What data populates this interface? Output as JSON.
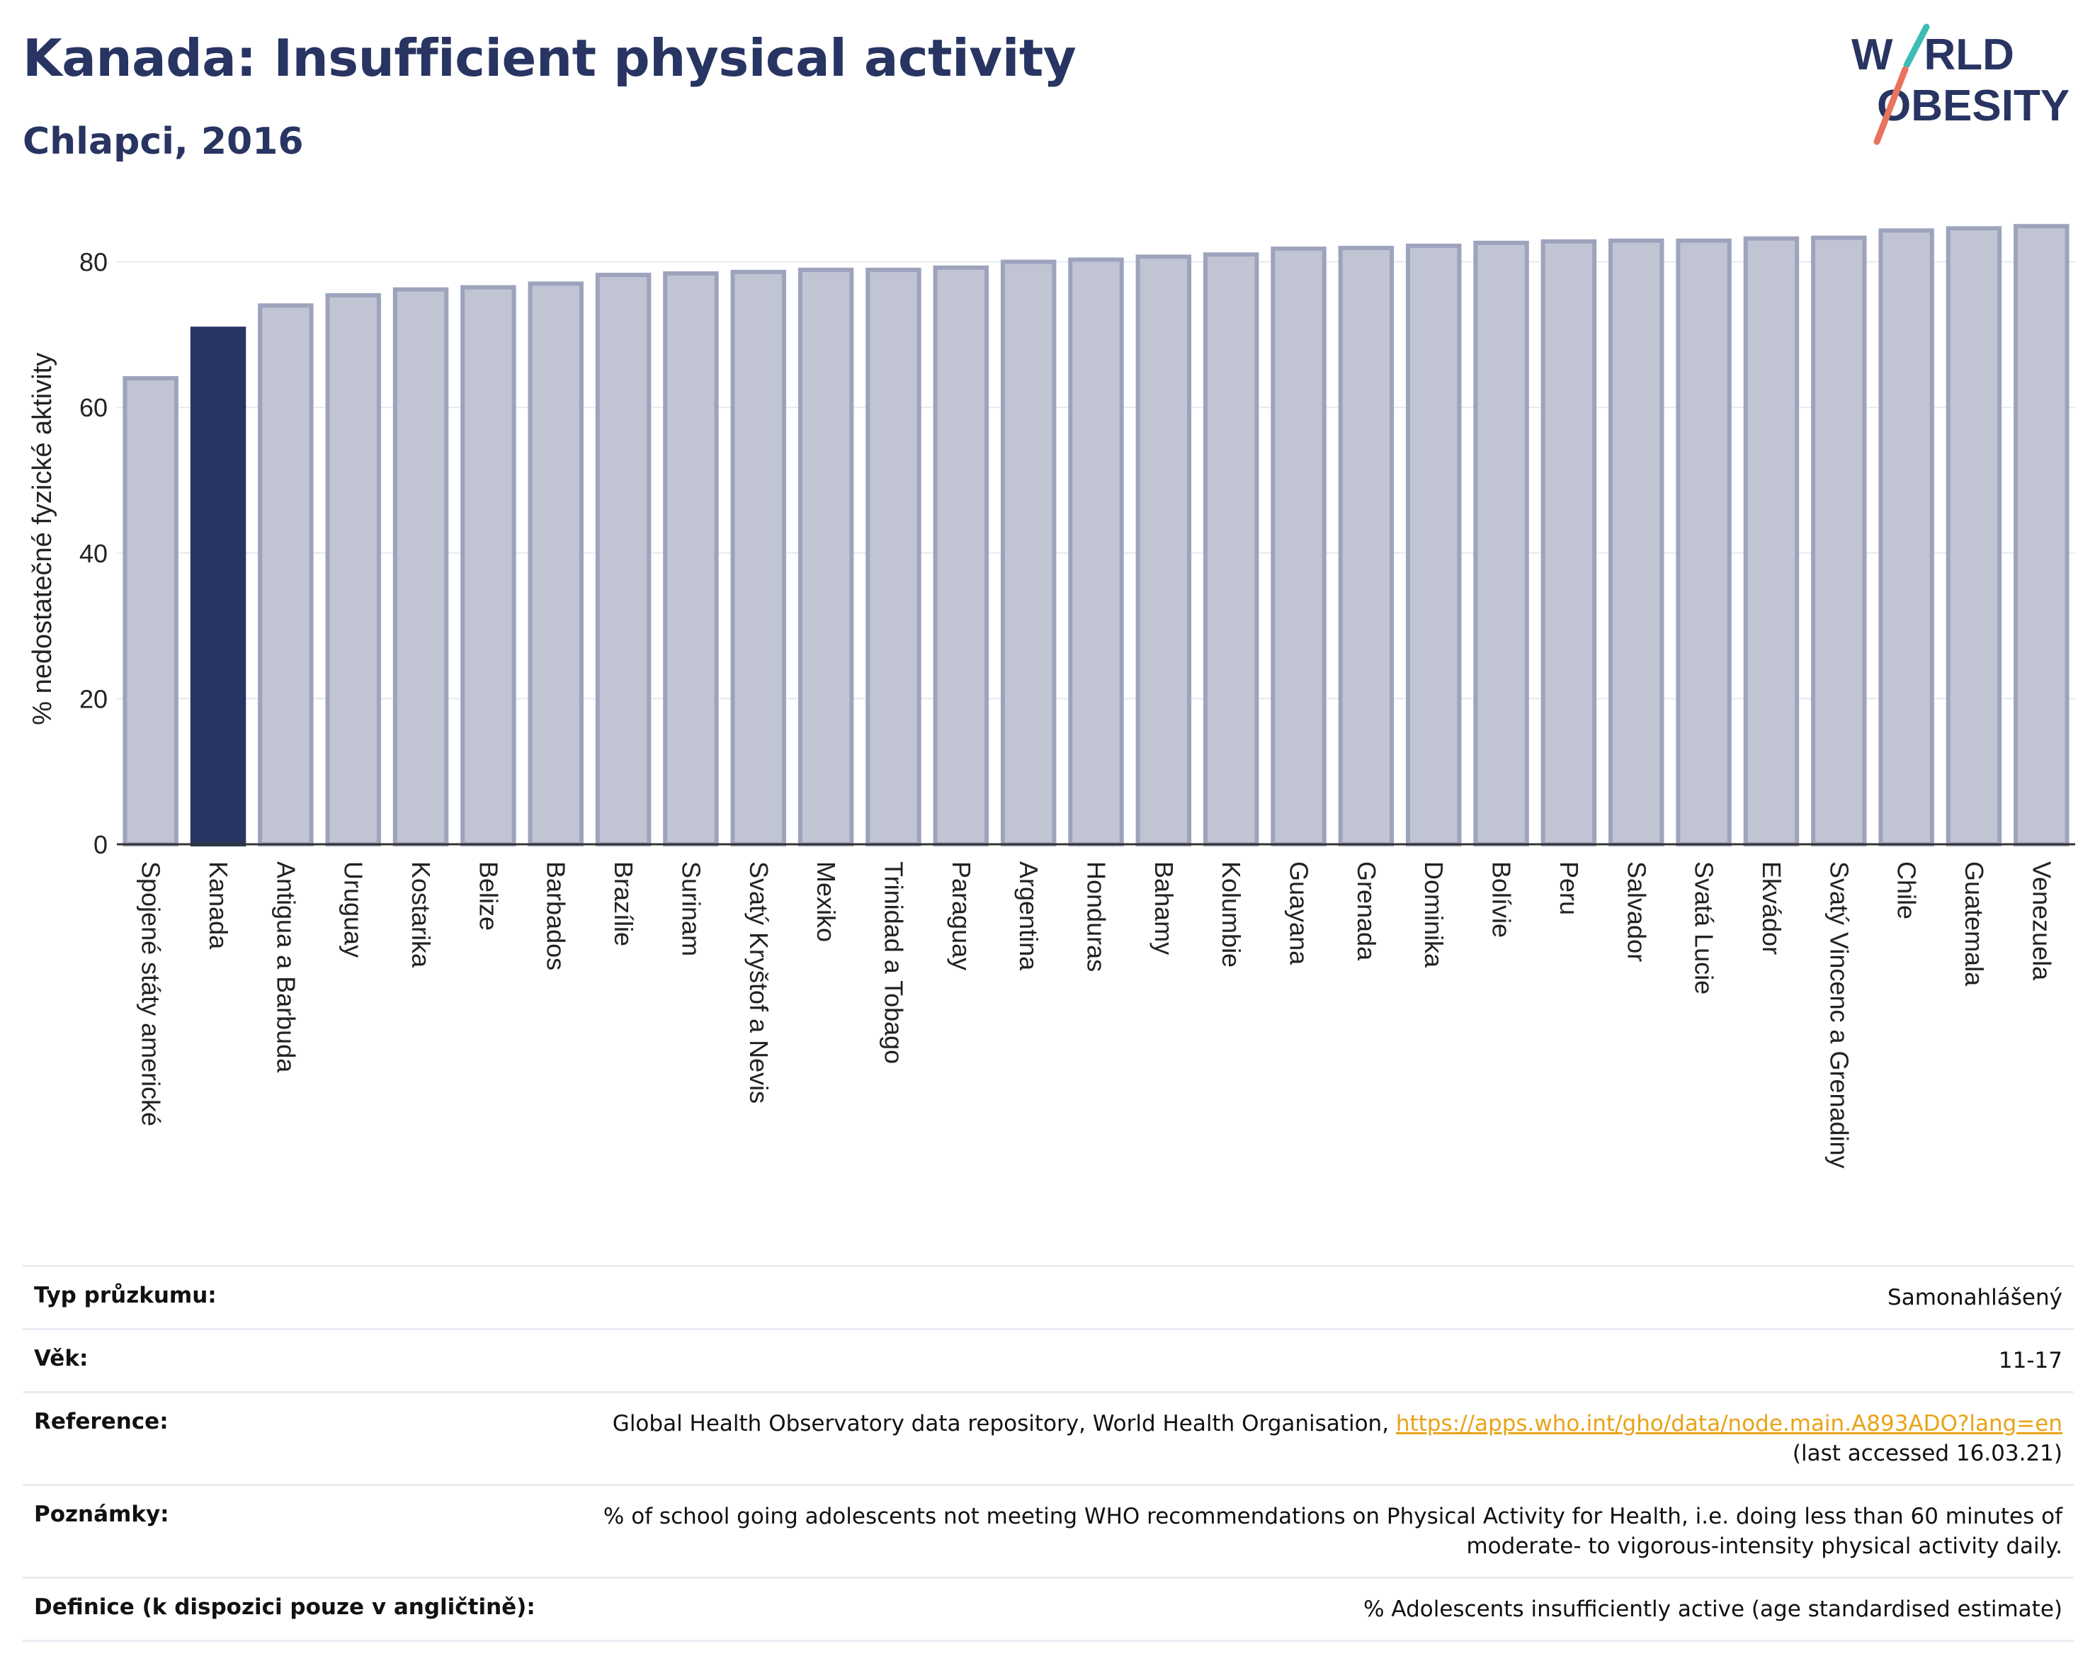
{
  "header": {
    "title": "Kanada: Insufficient physical activity",
    "subtitle": "Chlapci, 2016"
  },
  "logo": {
    "line1_a": "W",
    "line1_b": "RLD",
    "line2_a": "O",
    "line2_b": "BESITY"
  },
  "colors": {
    "highlight": "#283462",
    "bar": "#c1c4d2",
    "bar_border": "#9ea3bd",
    "title": "#283462",
    "link": "#e8a317",
    "logo_teal": "#3dbdb6",
    "logo_coral": "#e8735e"
  },
  "chart_data": {
    "type": "bar",
    "ylabel": "% nedostatečné fyzické aktivity",
    "ylim": [
      0,
      85
    ],
    "yticks": [
      0,
      20,
      40,
      60,
      80
    ],
    "grid": true,
    "highlight": "Kanada",
    "categories": [
      "Spojené státy americké",
      "Kanada",
      "Antigua a Barbuda",
      "Uruguay",
      "Kostarika",
      "Belize",
      "Barbados",
      "Brazílie",
      "Surinam",
      "Svatý Kryštof a Nevis",
      "Mexiko",
      "Trinidad a Tobago",
      "Paraguay",
      "Argentina",
      "Honduras",
      "Bahamy",
      "Kolumbie",
      "Guayana",
      "Grenada",
      "Dominika",
      "Bolívie",
      "Peru",
      "Salvador",
      "Svatá Lucie",
      "Ekvádor",
      "Svatý Vincenc a Grenadiny",
      "Chile",
      "Guatemala",
      "Venezuela"
    ],
    "values": [
      64.0,
      70.8,
      74.0,
      75.4,
      76.2,
      76.5,
      77.0,
      78.2,
      78.4,
      78.6,
      78.9,
      78.9,
      79.2,
      80.0,
      80.3,
      80.7,
      81.0,
      81.8,
      81.9,
      82.2,
      82.6,
      82.8,
      82.9,
      82.9,
      83.2,
      83.3,
      84.3,
      84.6,
      84.9
    ]
  },
  "meta": [
    {
      "key": "Typ průzkumu:",
      "value": "Samonahlášený"
    },
    {
      "key": "Věk:",
      "value": "11-17"
    },
    {
      "key": "Reference:",
      "value": "Global Health Observatory data repository, World Health Organisation, ",
      "link": "https://apps.who.int/gho/data/node.main.A893ADO?lang=en",
      "value2": "(last accessed 16.03.21)"
    },
    {
      "key": "Poznámky:",
      "value": "% of school going adolescents not meeting WHO recommendations on Physical Activity for Health, i.e. doing less than 60 minutes of moderate- to vigorous-intensity physical activity daily."
    },
    {
      "key": "Definice (k dispozici pouze v angličtině):",
      "value": "% Adolescents insufficiently active (age standardised estimate)"
    }
  ]
}
